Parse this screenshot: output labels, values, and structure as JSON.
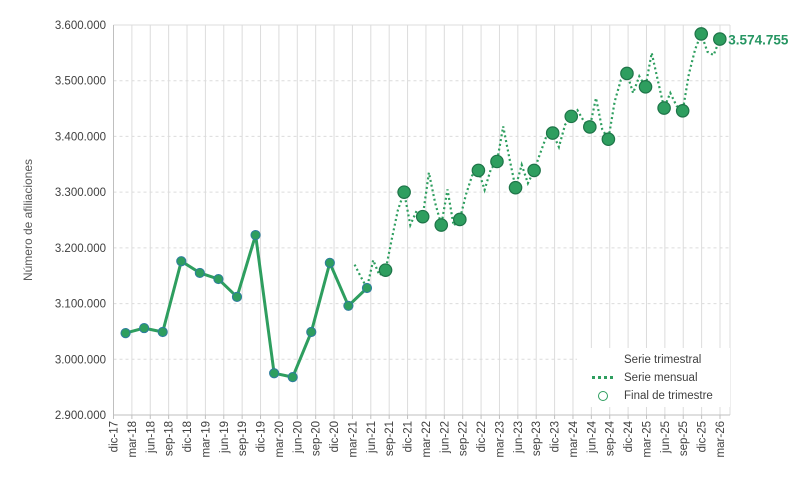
{
  "chart": {
    "y_axis": {
      "title": "Número de afiliaciones",
      "tick_labels": [
        "2.900.000",
        "3.000.000",
        "3.100.000",
        "3.200.000",
        "3.300.000",
        "3.400.000",
        "3.500.000",
        "3.600.000"
      ]
    },
    "x_axis": {
      "labels": [
        "dic-17",
        "mar-18",
        "jun-18",
        "sep-18",
        "dic-18",
        "mar-19",
        "jun-19",
        "sep-19",
        "dic-19",
        "mar-20",
        "jun-20",
        "sep-20",
        "dic-20",
        "mar-21",
        "jun-21",
        "sep-21",
        "dic-21",
        "mar-22",
        "jun-22",
        "sep-22",
        "dic-22",
        "mar-23",
        "jun-23",
        "sep-23",
        "dic-23",
        "mar-24",
        "jun-24",
        "sep-24",
        "dic-24",
        "mar-25",
        "jun-25",
        "sep-25",
        "dic-25",
        "mar-26"
      ]
    },
    "legend": {
      "position": "inside-bottom-right",
      "items": [
        {
          "label": "Serie trimestral",
          "swatch": "solid-line"
        },
        {
          "label": "Serie mensual",
          "swatch": "dotted-line"
        },
        {
          "label": "Final de trimestre",
          "swatch": "open-circle"
        }
      ]
    },
    "annotation": {
      "text": "3.574.755"
    },
    "colors": {
      "series_green": "#2e9e5f",
      "quarter_marker_edge": "#1e7448",
      "solid_marker_edge": "#2e7d9e",
      "annotation_text": "#279663",
      "gridline": "#dcdcdc",
      "axis_line": "#bfbfbf",
      "tick_text": "#404040",
      "axis_title_text": "#595959"
    }
  },
  "chart_data": {
    "type": "line",
    "title": "",
    "xlabel": "",
    "ylabel": "Número de afiliaciones",
    "ylim": [
      2900000,
      3600000
    ],
    "y_tick_step": 100000,
    "grid": {
      "vertical": "solid-light",
      "horizontal": "dashed-light"
    },
    "legend_position": "inside-bottom-right",
    "series": [
      {
        "name": "Serie trimestral",
        "style": "solid-line-with-markers",
        "points": [
          {
            "x": "mar-18",
            "y": 3047000
          },
          {
            "x": "jun-18",
            "y": 3056000
          },
          {
            "x": "sep-18",
            "y": 3049000
          },
          {
            "x": "dic-18",
            "y": 3176000
          },
          {
            "x": "mar-19",
            "y": 3155000
          },
          {
            "x": "jun-19",
            "y": 3144000
          },
          {
            "x": "sep-19",
            "y": 3112000
          },
          {
            "x": "dic-19",
            "y": 3223000
          },
          {
            "x": "mar-20",
            "y": 2975000
          },
          {
            "x": "jun-20",
            "y": 2968000
          },
          {
            "x": "sep-20",
            "y": 3049000
          },
          {
            "x": "dic-20",
            "y": 3173000
          },
          {
            "x": "mar-21",
            "y": 3096000
          },
          {
            "x": "jun-21",
            "y": 3128000
          }
        ]
      },
      {
        "name": "Serie mensual",
        "style": "dotted-line",
        "points": [
          {
            "x": "abr-21",
            "y": 3170000
          },
          {
            "x": "may-21",
            "y": 3148000
          },
          {
            "x": "jun-21",
            "y": 3128000
          },
          {
            "x": "jul-21",
            "y": 3178000
          },
          {
            "x": "ago-21",
            "y": 3151000
          },
          {
            "x": "sep-21",
            "y": 3160000
          },
          {
            "x": "oct-21",
            "y": 3215000
          },
          {
            "x": "nov-21",
            "y": 3268000
          },
          {
            "x": "dic-21",
            "y": 3300000
          },
          {
            "x": "ene-22",
            "y": 3241000
          },
          {
            "x": "feb-22",
            "y": 3266000
          },
          {
            "x": "mar-22",
            "y": 3256000
          },
          {
            "x": "abr-22",
            "y": 3335000
          },
          {
            "x": "may-22",
            "y": 3281000
          },
          {
            "x": "jun-22",
            "y": 3241000
          },
          {
            "x": "jul-22",
            "y": 3305000
          },
          {
            "x": "ago-22",
            "y": 3240000
          },
          {
            "x": "sep-22",
            "y": 3251000
          },
          {
            "x": "oct-22",
            "y": 3296000
          },
          {
            "x": "nov-22",
            "y": 3330000
          },
          {
            "x": "dic-22",
            "y": 3339000
          },
          {
            "x": "ene-23",
            "y": 3304000
          },
          {
            "x": "feb-23",
            "y": 3341000
          },
          {
            "x": "mar-23",
            "y": 3355000
          },
          {
            "x": "abr-23",
            "y": 3418000
          },
          {
            "x": "may-23",
            "y": 3361000
          },
          {
            "x": "jun-23",
            "y": 3308000
          },
          {
            "x": "jul-23",
            "y": 3349000
          },
          {
            "x": "ago-23",
            "y": 3316000
          },
          {
            "x": "sep-23",
            "y": 3339000
          },
          {
            "x": "oct-23",
            "y": 3370000
          },
          {
            "x": "nov-23",
            "y": 3401000
          },
          {
            "x": "dic-23",
            "y": 3406000
          },
          {
            "x": "ene-24",
            "y": 3381000
          },
          {
            "x": "feb-24",
            "y": 3421000
          },
          {
            "x": "mar-24",
            "y": 3436000
          },
          {
            "x": "abr-24",
            "y": 3447000
          },
          {
            "x": "may-24",
            "y": 3428000
          },
          {
            "x": "jun-24",
            "y": 3417000
          },
          {
            "x": "jul-24",
            "y": 3469000
          },
          {
            "x": "ago-24",
            "y": 3413000
          },
          {
            "x": "sep-24",
            "y": 3395000
          },
          {
            "x": "oct-24",
            "y": 3462000
          },
          {
            "x": "nov-24",
            "y": 3501000
          },
          {
            "x": "dic-24",
            "y": 3513000
          },
          {
            "x": "ene-25",
            "y": 3478000
          },
          {
            "x": "feb-25",
            "y": 3508000
          },
          {
            "x": "mar-25",
            "y": 3489000
          },
          {
            "x": "abr-25",
            "y": 3550000
          },
          {
            "x": "may-25",
            "y": 3500000
          },
          {
            "x": "jun-25",
            "y": 3451000
          },
          {
            "x": "jul-25",
            "y": 3478000
          },
          {
            "x": "ago-25",
            "y": 3455000
          },
          {
            "x": "sep-25",
            "y": 3446000
          },
          {
            "x": "oct-25",
            "y": 3512000
          },
          {
            "x": "nov-25",
            "y": 3556000
          },
          {
            "x": "dic-25",
            "y": 3584000
          },
          {
            "x": "ene-26",
            "y": 3552000
          },
          {
            "x": "feb-26",
            "y": 3546000
          },
          {
            "x": "mar-26",
            "y": 3574755
          }
        ]
      },
      {
        "name": "Final de trimestre",
        "style": "circle-markers",
        "points": [
          {
            "x": "sep-21",
            "y": 3160000
          },
          {
            "x": "dic-21",
            "y": 3300000
          },
          {
            "x": "mar-22",
            "y": 3256000
          },
          {
            "x": "jun-22",
            "y": 3241000
          },
          {
            "x": "sep-22",
            "y": 3251000
          },
          {
            "x": "dic-22",
            "y": 3339000
          },
          {
            "x": "mar-23",
            "y": 3355000
          },
          {
            "x": "jun-23",
            "y": 3308000
          },
          {
            "x": "sep-23",
            "y": 3339000
          },
          {
            "x": "dic-23",
            "y": 3406000
          },
          {
            "x": "mar-24",
            "y": 3436000
          },
          {
            "x": "jun-24",
            "y": 3417000
          },
          {
            "x": "sep-24",
            "y": 3395000
          },
          {
            "x": "dic-24",
            "y": 3513000
          },
          {
            "x": "mar-25",
            "y": 3489000
          },
          {
            "x": "jun-25",
            "y": 3451000
          },
          {
            "x": "sep-25",
            "y": 3446000
          },
          {
            "x": "dic-25",
            "y": 3584000
          },
          {
            "x": "mar-26",
            "y": 3574755
          }
        ]
      }
    ],
    "annotations": [
      {
        "text": "3.574.755",
        "attached_to": "mar-26",
        "series": "Final de trimestre"
      }
    ]
  }
}
